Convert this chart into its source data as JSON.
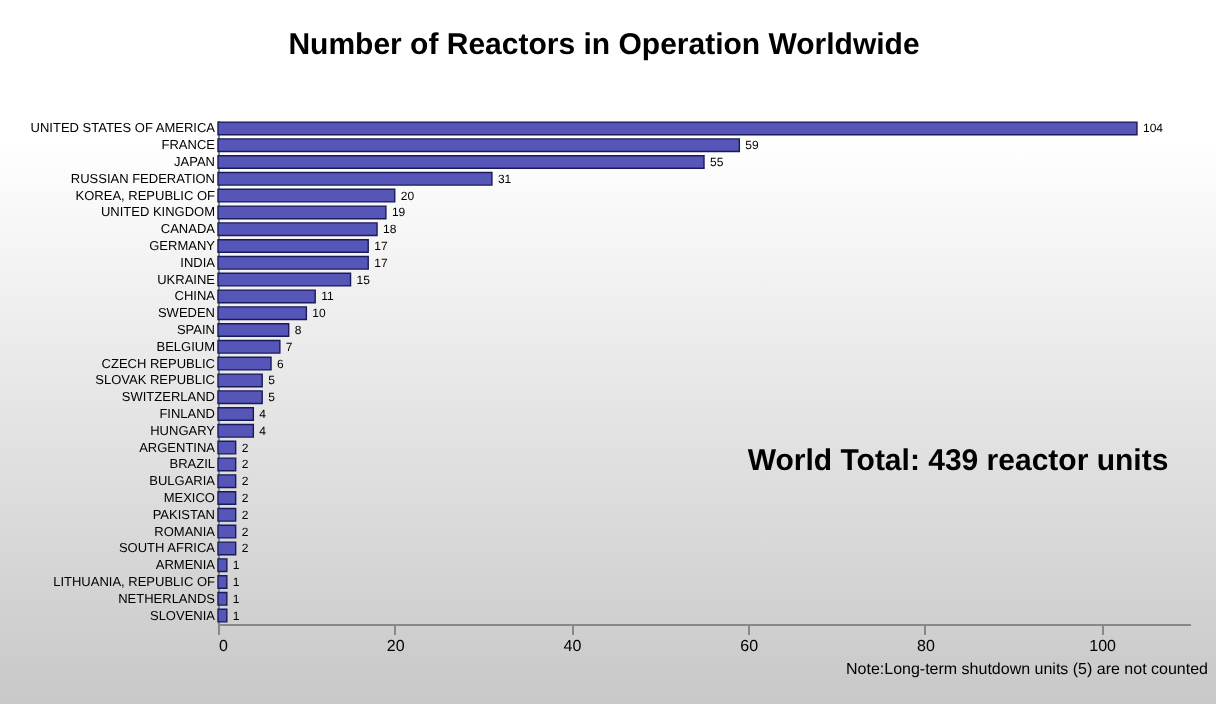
{
  "chart_data": {
    "type": "bar",
    "orientation": "horizontal",
    "title": "Number of Reactors in Operation Worldwide",
    "categories": [
      "UNITED STATES OF AMERICA",
      "FRANCE",
      "JAPAN",
      "RUSSIAN FEDERATION",
      "KOREA, REPUBLIC OF",
      "UNITED KINGDOM",
      "CANADA",
      "GERMANY",
      "INDIA",
      "UKRAINE",
      "CHINA",
      "SWEDEN",
      "SPAIN",
      "BELGIUM",
      "CZECH REPUBLIC",
      "SLOVAK REPUBLIC",
      "SWITZERLAND",
      "FINLAND",
      "HUNGARY",
      "ARGENTINA",
      "BRAZIL",
      "BULGARIA",
      "MEXICO",
      "PAKISTAN",
      "ROMANIA",
      "SOUTH AFRICA",
      "ARMENIA",
      "LITHUANIA, REPUBLIC OF",
      "NETHERLANDS",
      "SLOVENIA"
    ],
    "values": [
      104,
      59,
      55,
      31,
      20,
      19,
      18,
      17,
      17,
      15,
      11,
      10,
      8,
      7,
      6,
      5,
      5,
      4,
      4,
      2,
      2,
      2,
      2,
      2,
      2,
      2,
      1,
      1,
      1,
      1
    ],
    "color": "#5656b8",
    "xlim": [
      0,
      110
    ],
    "xticks": [
      0,
      20,
      40,
      60,
      80,
      100
    ],
    "data_labels": true,
    "grid": false,
    "annotations": [
      "World Total:  439 reactor units",
      "Note:Long-term shutdown units (5) are not counted"
    ]
  }
}
